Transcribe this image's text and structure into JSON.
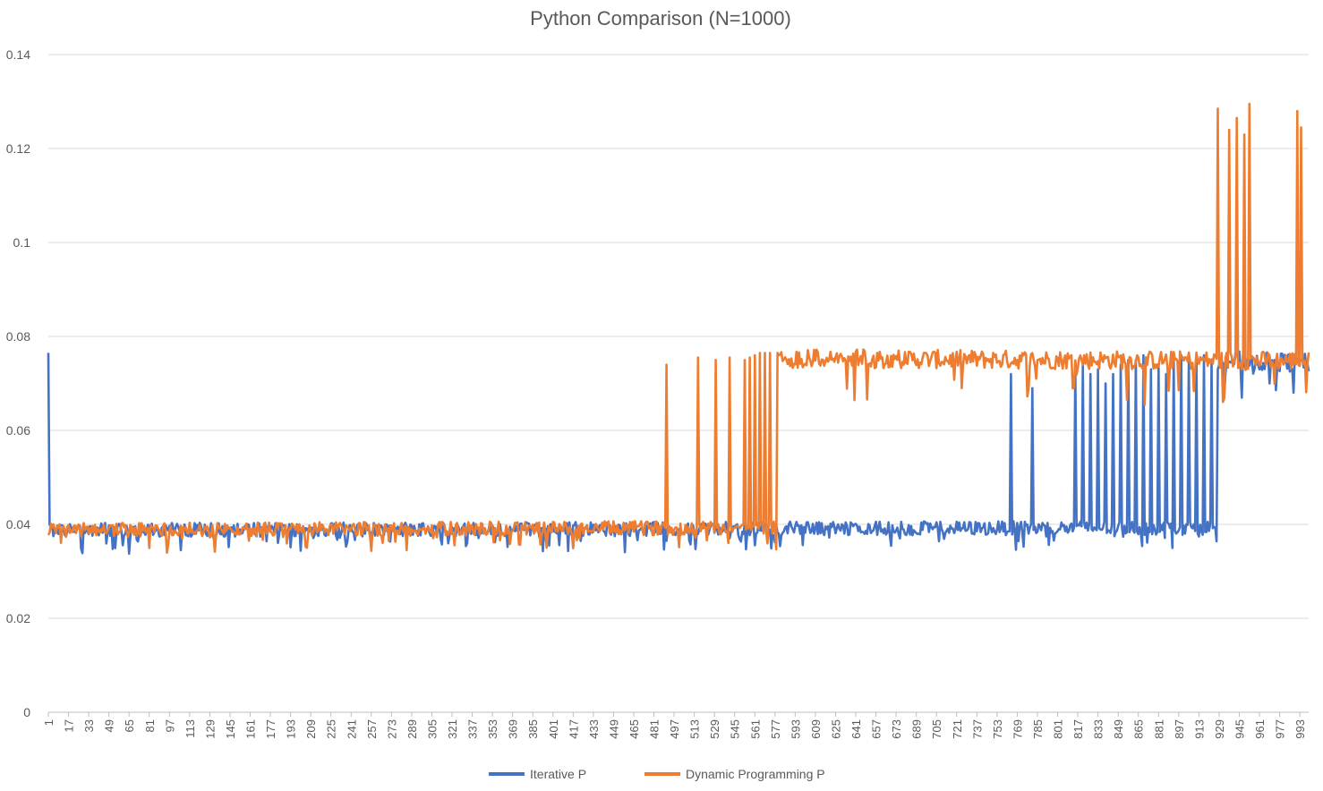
{
  "chart_data": {
    "type": "line",
    "title": "Python Comparison (N=1000)",
    "xlabel": "",
    "ylabel": "",
    "x_range": [
      1,
      1000
    ],
    "x_tick_start": 1,
    "x_tick_step": 16,
    "ylim": [
      0,
      0.14
    ],
    "y_ticks": [
      "0",
      "0.02",
      "0.04",
      "0.06",
      "0.08",
      "0.1",
      "0.12",
      "0.14"
    ],
    "grid": "horizontal",
    "legend_position": "bottom",
    "series": [
      {
        "name": "Iterative P",
        "color": "#4472C4",
        "base_level": [
          [
            1,
            0.0385
          ],
          [
            580,
            0.0388
          ],
          [
            1000,
            0.039
          ]
        ],
        "high_level": [
          [
            900,
            0.0755
          ],
          [
            1000,
            0.0745
          ]
        ],
        "spikes": [
          [
            1,
            0.0765
          ],
          [
            764,
            0.072
          ],
          [
            781,
            0.069
          ],
          [
            815,
            0.073
          ],
          [
            821,
            0.074
          ],
          [
            827,
            0.072
          ],
          [
            833,
            0.073
          ],
          [
            839,
            0.07
          ],
          [
            845,
            0.072
          ],
          [
            851,
            0.074
          ],
          [
            857,
            0.075
          ],
          [
            863,
            0.075
          ],
          [
            869,
            0.076
          ],
          [
            875,
            0.073
          ],
          [
            881,
            0.074
          ],
          [
            887,
            0.072
          ],
          [
            893,
            0.075
          ],
          [
            899,
            0.076
          ],
          [
            905,
            0.075
          ],
          [
            911,
            0.076
          ],
          [
            917,
            0.076
          ],
          [
            923,
            0.075
          ]
        ],
        "high_from": 928
      },
      {
        "name": "Dynamic Programming P",
        "color": "#ED7D31",
        "base_level": [
          [
            1,
            0.0385
          ],
          [
            580,
            0.039
          ]
        ],
        "high_level": [
          [
            580,
            0.0755
          ],
          [
            1000,
            0.075
          ]
        ],
        "spikes": [
          [
            491,
            0.074
          ],
          [
            516,
            0.0755
          ],
          [
            530,
            0.075
          ],
          [
            541,
            0.0755
          ],
          [
            553,
            0.075
          ],
          [
            557,
            0.0755
          ],
          [
            561,
            0.076
          ],
          [
            565,
            0.0765
          ],
          [
            569,
            0.0765
          ],
          [
            573,
            0.0765
          ],
          [
            579,
            0.0765
          ]
        ],
        "high_from": 580,
        "high_spikes": [
          [
            928,
            0.1285
          ],
          [
            937,
            0.124
          ],
          [
            943,
            0.1265
          ],
          [
            949,
            0.123
          ],
          [
            953,
            0.1295
          ],
          [
            991,
            0.128
          ],
          [
            994,
            0.1245
          ]
        ]
      }
    ]
  }
}
